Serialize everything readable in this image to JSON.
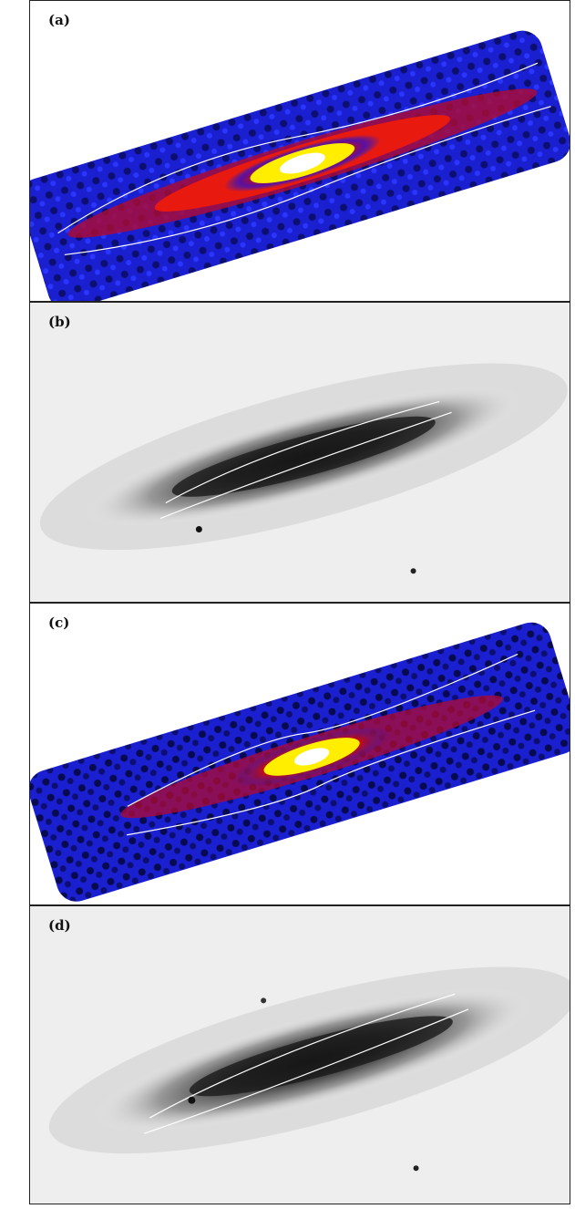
{
  "panels": [
    {
      "label": "(a)"
    },
    {
      "label": "(b)"
    },
    {
      "label": "(c)"
    },
    {
      "label": "(d)"
    }
  ],
  "colors": {
    "xray_background": "#1a1fd0",
    "xray_dark": "#050530",
    "xray_mid": "#e01010",
    "xray_hot": "#ffee00",
    "xray_core": "#ffffff",
    "optical_background": "#eeeeee",
    "optical_disk": "#222222",
    "contour": "#ffffff"
  }
}
